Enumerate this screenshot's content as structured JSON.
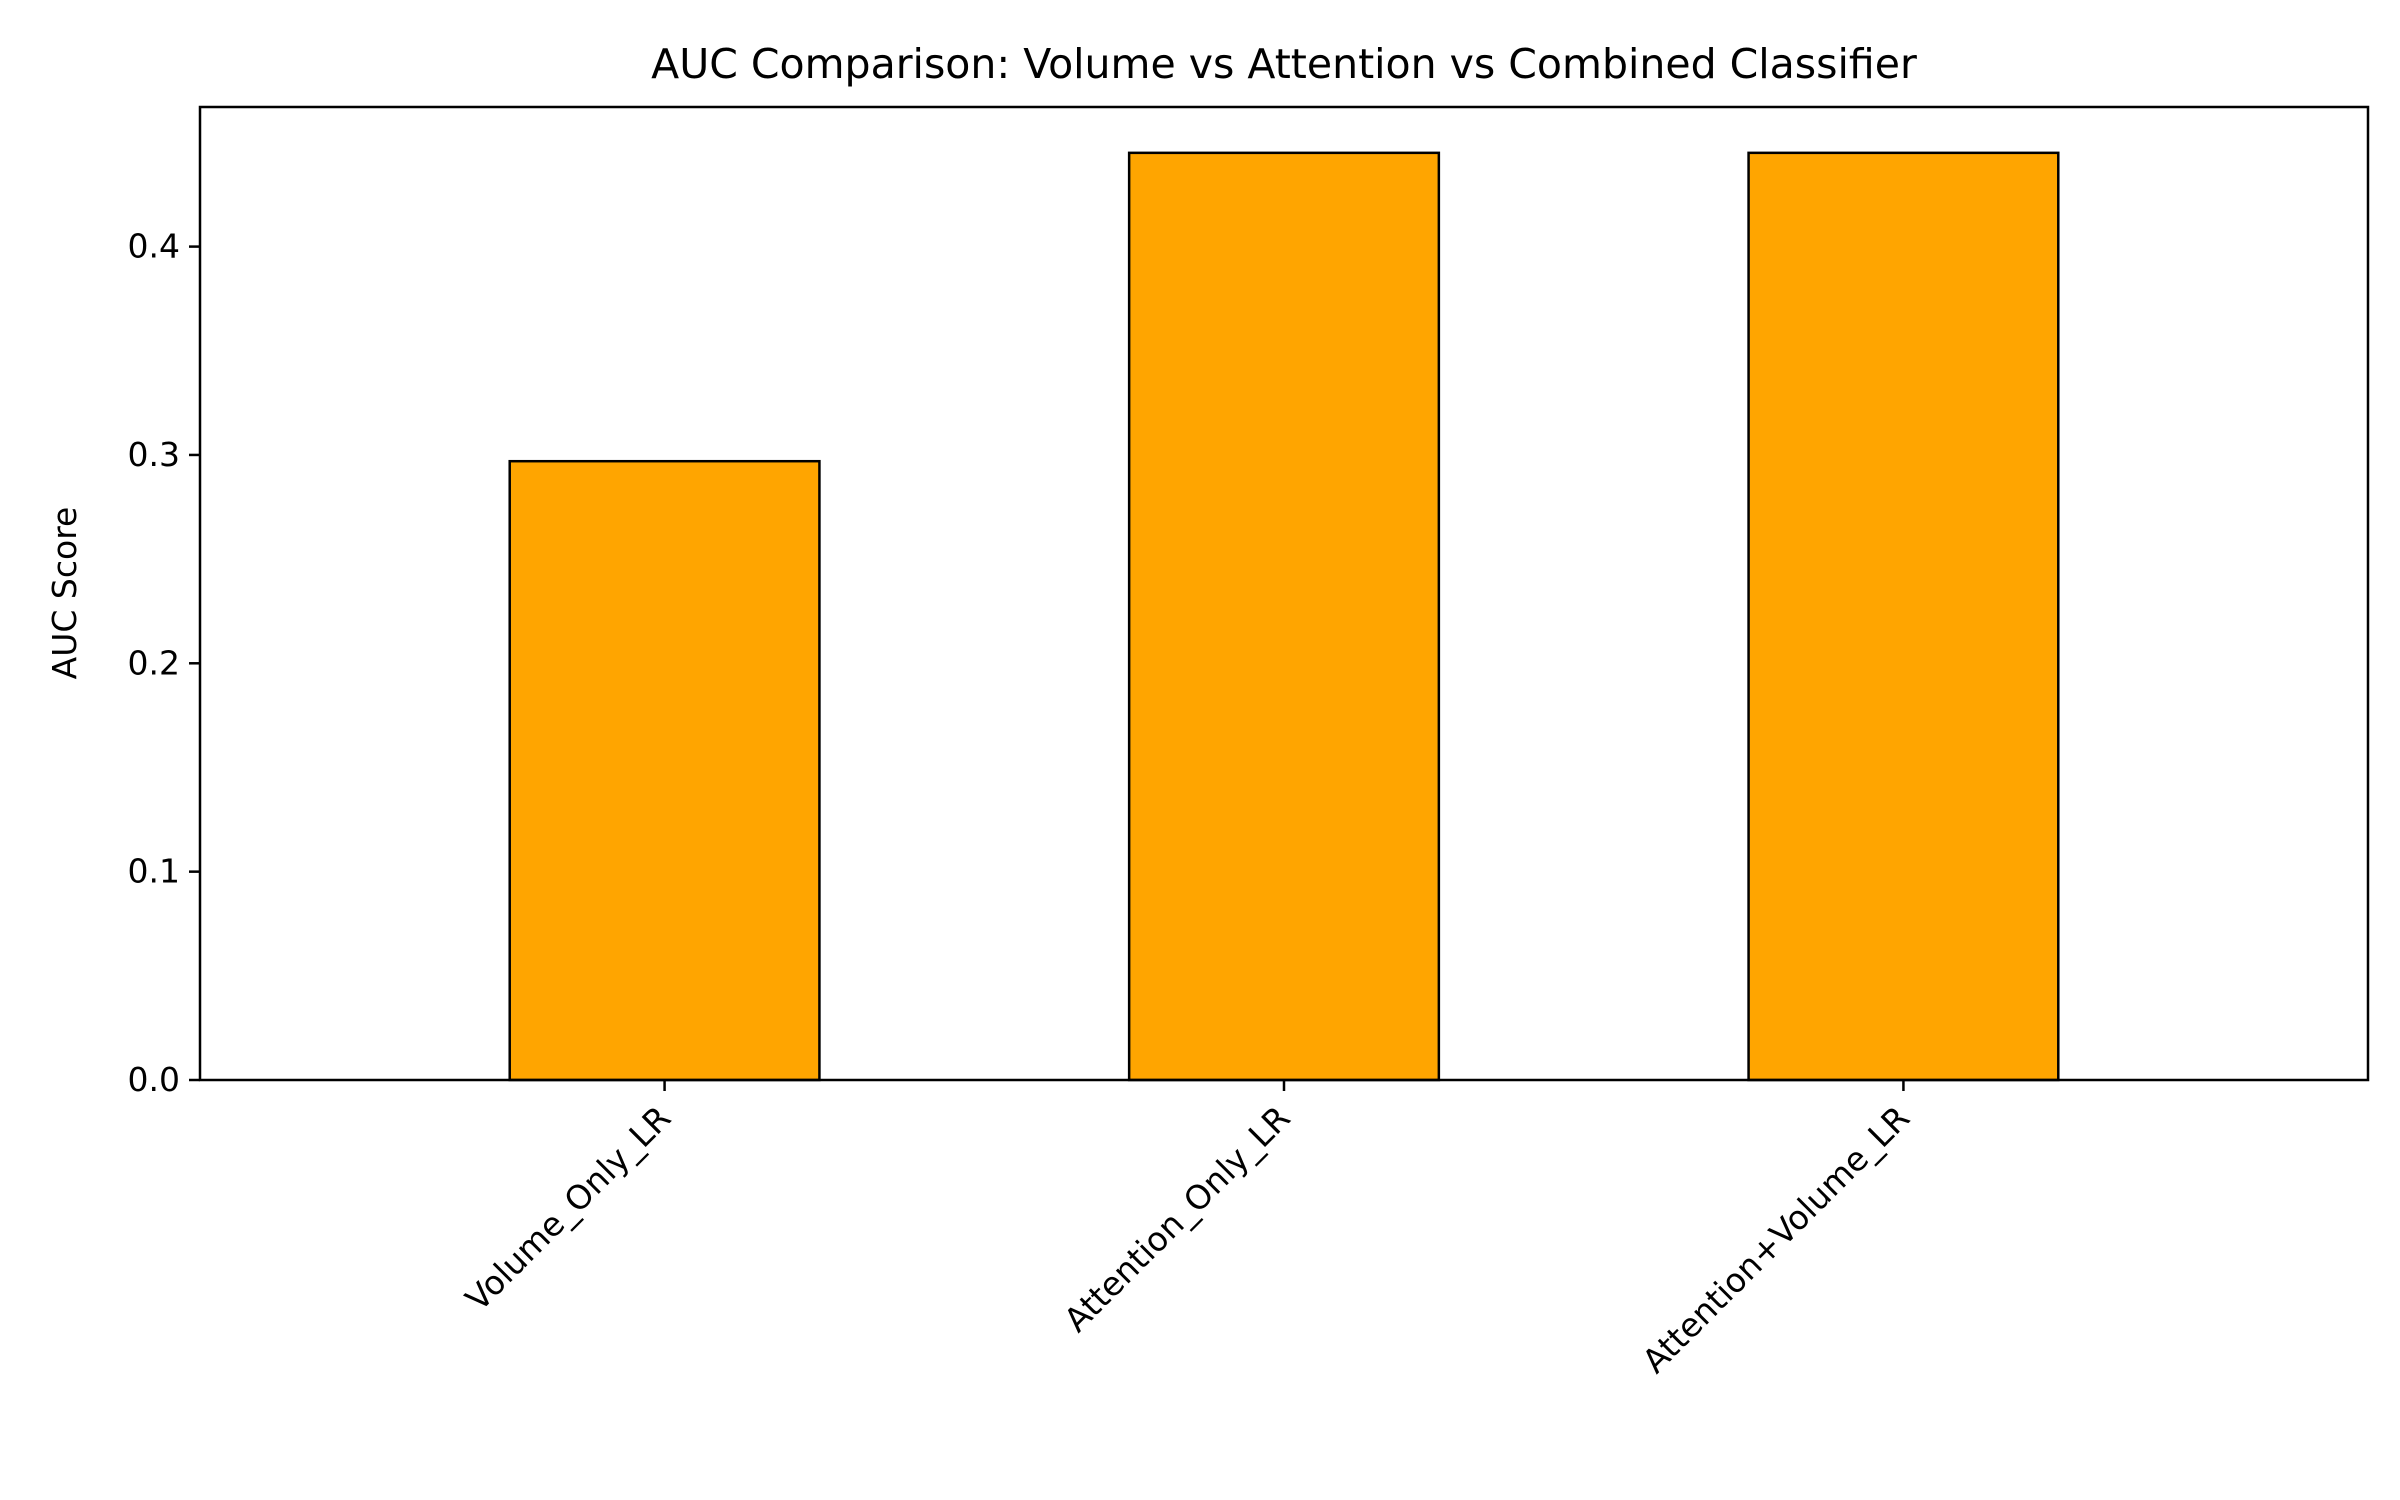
{
  "chart_data": {
    "type": "bar",
    "title": "AUC Comparison: Volume vs Attention vs Combined Classifier",
    "xlabel": "",
    "ylabel": "AUC Score",
    "categories": [
      "Volume_Only_LR",
      "Attention_Only_LR",
      "Attention+Volume_LR"
    ],
    "values": [
      0.297,
      0.445,
      0.445
    ],
    "ylim": [
      0,
      0.467
    ],
    "yticks": [
      "0.0",
      "0.1",
      "0.2",
      "0.3",
      "0.4"
    ],
    "bar_color": "#FFA500",
    "edge_color": "#000000",
    "grid": false,
    "legend": "none"
  }
}
